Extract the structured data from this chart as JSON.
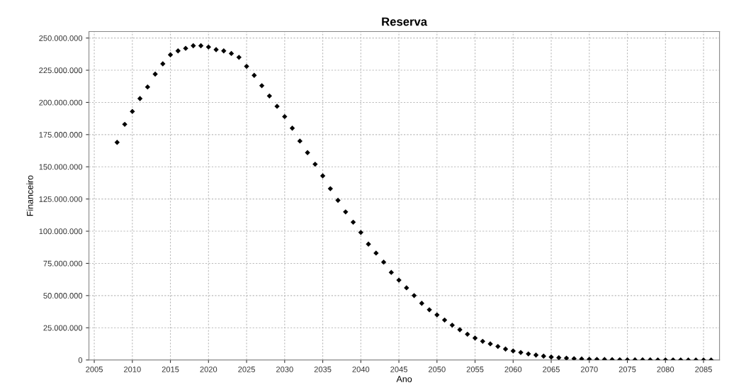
{
  "chart_data": {
    "type": "scatter",
    "title": "Reserva",
    "xlabel": "Ano",
    "ylabel": "Financeiro",
    "x": [
      2008,
      2009,
      2010,
      2011,
      2012,
      2013,
      2014,
      2015,
      2016,
      2017,
      2018,
      2019,
      2020,
      2021,
      2022,
      2023,
      2024,
      2025,
      2026,
      2027,
      2028,
      2029,
      2030,
      2031,
      2032,
      2033,
      2034,
      2035,
      2036,
      2037,
      2038,
      2039,
      2040,
      2041,
      2042,
      2043,
      2044,
      2045,
      2046,
      2047,
      2048,
      2049,
      2050,
      2051,
      2052,
      2053,
      2054,
      2055,
      2056,
      2057,
      2058,
      2059,
      2060,
      2061,
      2062,
      2063,
      2064,
      2065,
      2066,
      2067,
      2068,
      2069,
      2070,
      2071,
      2072,
      2073,
      2074,
      2075,
      2076,
      2077,
      2078,
      2079,
      2080,
      2081,
      2082,
      2083,
      2084,
      2085,
      2086
    ],
    "series": [
      {
        "color": "#000000",
        "values": [
          169000000,
          183000000,
          193000000,
          203000000,
          212000000,
          222000000,
          230000000,
          237000000,
          240000000,
          242000000,
          244000000,
          244000000,
          243000000,
          241000000,
          240000000,
          238000000,
          235000000,
          228000000,
          221000000,
          213000000,
          205000000,
          197000000,
          189000000,
          180000000,
          170000000,
          161000000,
          152000000,
          143000000,
          133000000,
          124000000,
          115000000,
          107000000,
          99000000,
          90000000,
          83000000,
          76000000,
          68000000,
          62000000,
          56000000,
          50000000,
          44000000,
          39000000,
          35000000,
          31000000,
          27000000,
          23500000,
          20000000,
          17000000,
          14500000,
          12500000,
          10500000,
          8500000,
          7000000,
          5800000,
          4700000,
          3800000,
          3000000,
          2300000,
          1800000,
          1400000,
          1000000,
          800000,
          600000,
          450000,
          350000,
          250000,
          180000,
          120000,
          100000,
          80000,
          60000,
          50000,
          40000,
          30000,
          20000,
          10000,
          5000,
          2000,
          0
        ]
      }
    ],
    "marker": "diamond",
    "grid": true,
    "xlim": [
      2004.3,
      2087.1
    ],
    "xticks": [
      2005,
      2010,
      2015,
      2020,
      2025,
      2030,
      2035,
      2040,
      2045,
      2050,
      2055,
      2060,
      2065,
      2070,
      2075,
      2080,
      2085
    ],
    "ylim": [
      0,
      255000000
    ],
    "yticks": [
      {
        "value": 0,
        "label": "0"
      },
      {
        "value": 25000000,
        "label": "25.000.000"
      },
      {
        "value": 50000000,
        "label": "50.000.000"
      },
      {
        "value": 75000000,
        "label": "75.000.000"
      },
      {
        "value": 100000000,
        "label": "100.000.000"
      },
      {
        "value": 125000000,
        "label": "125.000.000"
      },
      {
        "value": 150000000,
        "label": "150.000.000"
      },
      {
        "value": 175000000,
        "label": "175.000.000"
      },
      {
        "value": 200000000,
        "label": "200.000.000"
      },
      {
        "value": 225000000,
        "label": "225.000.000"
      },
      {
        "value": 250000000,
        "label": "250.000.000"
      }
    ]
  }
}
